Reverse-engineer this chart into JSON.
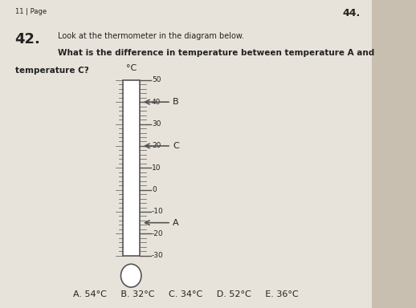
{
  "bg_color": "#c8bfb0",
  "page_color": "#e8e3da",
  "title_num": "42.",
  "page_num_left": "11 | Page",
  "page_num_right": "44.",
  "question_line1": "Look at the thermometer in the diagram below.",
  "question_line2": "What is the difference in temperature between temperature A and",
  "question_line3": "temperature C?",
  "thermo_label": "°C",
  "scale_min": -30,
  "scale_max": 50,
  "major_ticks": [
    50,
    40,
    30,
    20,
    10,
    0,
    -10,
    -20,
    -30
  ],
  "point_B_temp": 40,
  "point_C_temp": 20,
  "point_A_temp": -15,
  "answers": "A. 54°C     B. 32°C     C. 34°C     D. 52°C     E. 36°C",
  "thermo_color": "#555555",
  "arrow_color": "#555555",
  "text_color": "#222222"
}
